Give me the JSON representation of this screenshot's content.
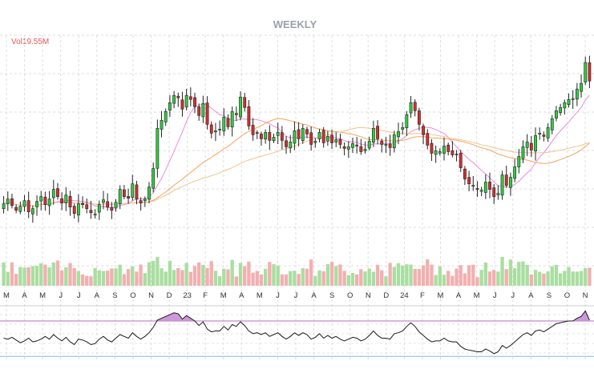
{
  "chart_data": {
    "type": "candlestick",
    "title": "WEEKLY",
    "volume_label": "Vol",
    "volume_value": "19.55M",
    "x_ticks": [
      "M",
      "A",
      "M",
      "J",
      "J",
      "A",
      "S",
      "O",
      "N",
      "D",
      "23",
      "F",
      "M",
      "A",
      "M",
      "J",
      "J",
      "A",
      "S",
      "O",
      "N",
      "D",
      "24",
      "F",
      "M",
      "A",
      "M",
      "J",
      "J",
      "A",
      "S",
      "O",
      "N"
    ],
    "grid": true,
    "price_axis": {
      "min": 12,
      "max": 43,
      "labels_shown": false
    },
    "moving_averages": [
      {
        "id": "ma10",
        "color": "#e58de0"
      },
      {
        "id": "ma30",
        "color": "#f2a35a"
      },
      {
        "id": "ma50",
        "color": "#f4c38a"
      }
    ],
    "weekly_closes": [
      22.0,
      22.6,
      21.8,
      21.2,
      21.7,
      22.4,
      21.0,
      21.4,
      22.3,
      22.9,
      21.9,
      22.6,
      23.8,
      22.9,
      22.1,
      23.1,
      21.6,
      20.8,
      22.0,
      21.9,
      21.4,
      20.9,
      20.7,
      21.9,
      22.5,
      21.6,
      21.2,
      22.2,
      23.8,
      22.9,
      22.7,
      24.5,
      22.6,
      22.1,
      22.6,
      24.1,
      26.4,
      31.4,
      32.4,
      33.5,
      34.6,
      35.5,
      35.2,
      33.8,
      35.5,
      35.0,
      34.1,
      33.0,
      34.5,
      31.9,
      30.8,
      31.1,
      31.3,
      32.8,
      31.6,
      33.5,
      33.1,
      35.3,
      34.0,
      31.7,
      30.6,
      30.8,
      30.1,
      30.9,
      29.9,
      30.3,
      30.9,
      29.9,
      29.1,
      29.7,
      31.1,
      30.1,
      31.4,
      30.7,
      29.4,
      29.8,
      30.9,
      29.6,
      30.4,
      29.6,
      30.0,
      29.4,
      28.9,
      29.1,
      29.5,
      29.2,
      28.5,
      28.8,
      29.8,
      31.4,
      30.1,
      29.4,
      29.4,
      29.0,
      30.6,
      31.0,
      31.5,
      33.1,
      34.6,
      33.6,
      31.9,
      30.6,
      29.3,
      28.3,
      28.6,
      28.5,
      29.2,
      28.5,
      28.1,
      28.1,
      26.5,
      25.1,
      24.5,
      24.2,
      23.8,
      23.7,
      24.7,
      23.8,
      22.9,
      23.3,
      25.6,
      24.3,
      25.3,
      26.6,
      27.9,
      29.1,
      29.7,
      28.7,
      30.5,
      30.8,
      30.4,
      31.5,
      32.6,
      33.6,
      34.0,
      34.6,
      35.0,
      35.1,
      36.3,
      37.0,
      39.6,
      37.3
    ],
    "rsi": [
      56,
      55,
      57,
      54,
      51,
      53,
      56,
      52,
      53,
      55,
      58,
      55,
      60,
      56,
      53,
      57,
      52,
      49,
      55,
      54,
      52,
      49,
      50,
      55,
      58,
      54,
      52,
      56,
      60,
      58,
      56,
      62,
      58,
      55,
      58,
      62,
      68,
      76,
      78,
      80,
      82,
      84,
      83,
      77,
      81,
      78,
      75,
      70,
      74,
      66,
      63,
      64,
      64,
      69,
      65,
      71,
      69,
      74,
      70,
      64,
      61,
      62,
      60,
      62,
      58,
      60,
      62,
      58,
      55,
      58,
      62,
      59,
      62,
      60,
      55,
      57,
      61,
      56,
      59,
      56,
      58,
      55,
      53,
      55,
      57,
      56,
      53,
      55,
      59,
      64,
      59,
      56,
      56,
      55,
      61,
      62,
      64,
      69,
      73,
      69,
      63,
      59,
      55,
      52,
      53,
      53,
      56,
      53,
      52,
      52,
      47,
      44,
      43,
      42,
      41,
      41,
      44,
      42,
      39,
      41,
      48,
      45,
      48,
      52,
      56,
      60,
      62,
      59,
      64,
      65,
      63,
      66,
      69,
      72,
      73,
      74,
      75,
      75,
      78,
      80,
      86,
      76
    ]
  }
}
